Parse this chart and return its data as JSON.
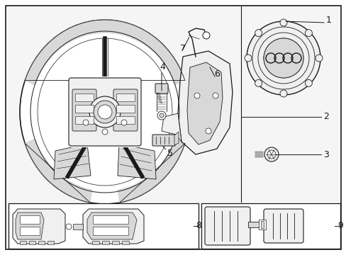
{
  "bg_color": "#ffffff",
  "fill_light": "#f0f0f0",
  "fill_mid": "#d8d8d8",
  "fill_dark": "#b0b0b0",
  "line_color": "#1a1a1a",
  "gray_bg": "#e8e8e8"
}
